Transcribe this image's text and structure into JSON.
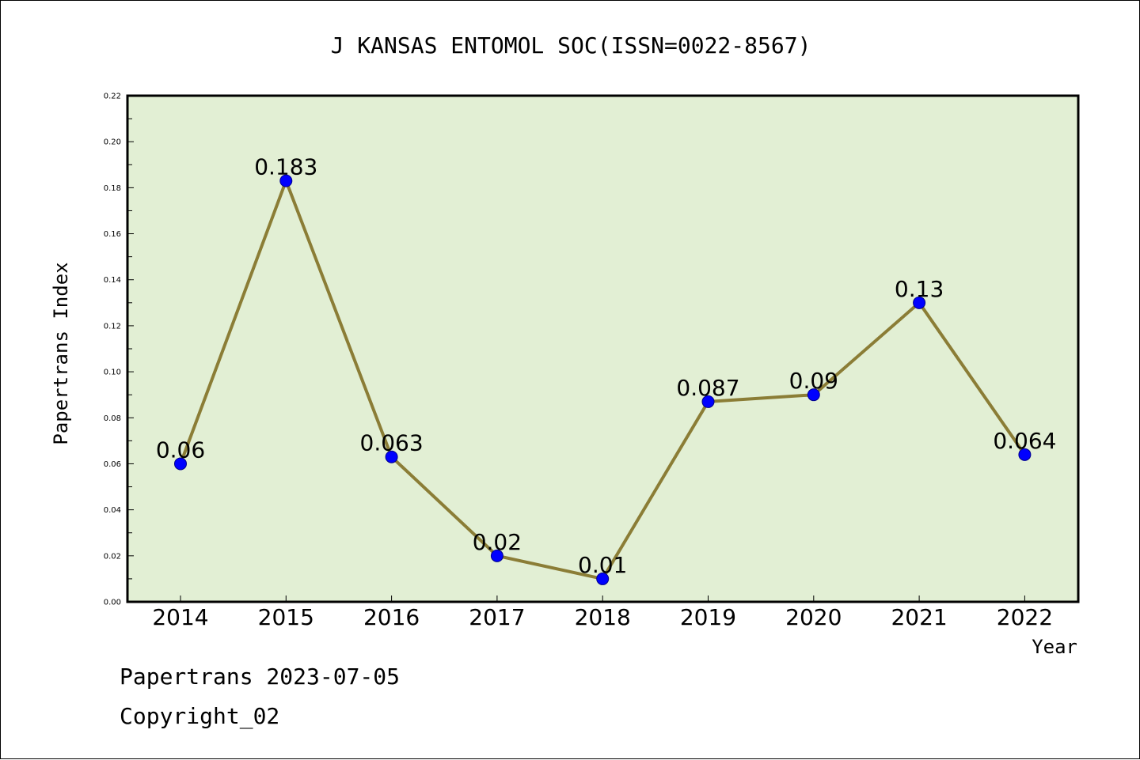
{
  "chart_data": {
    "type": "line",
    "title": "J KANSAS ENTOMOL SOC(ISSN=0022-8567)",
    "xlabel": "Year",
    "ylabel": "Papertrans Index",
    "categories": [
      "2014",
      "2015",
      "2016",
      "2017",
      "2018",
      "2019",
      "2020",
      "2021",
      "2022"
    ],
    "values": [
      0.06,
      0.183,
      0.063,
      0.02,
      0.01,
      0.087,
      0.09,
      0.13,
      0.064
    ],
    "data_labels": [
      "0.06",
      "0.183",
      "0.063",
      "0.02",
      "0.01",
      "0.087",
      "0.09",
      "0.13",
      "0.064"
    ],
    "ylim": [
      0,
      0.22
    ],
    "yticks": [
      "0.00",
      "0.02",
      "0.04",
      "0.06",
      "0.08",
      "0.10",
      "0.12",
      "0.14",
      "0.16",
      "0.18",
      "0.20",
      "0.22"
    ],
    "grid": false,
    "legend": false,
    "colors": {
      "plot_background": "#e2efd4",
      "line": "#8b7d36",
      "marker": "#0000ff"
    }
  },
  "footer": {
    "line1": "Papertrans 2023-07-05",
    "line2": "Copyright_02"
  }
}
